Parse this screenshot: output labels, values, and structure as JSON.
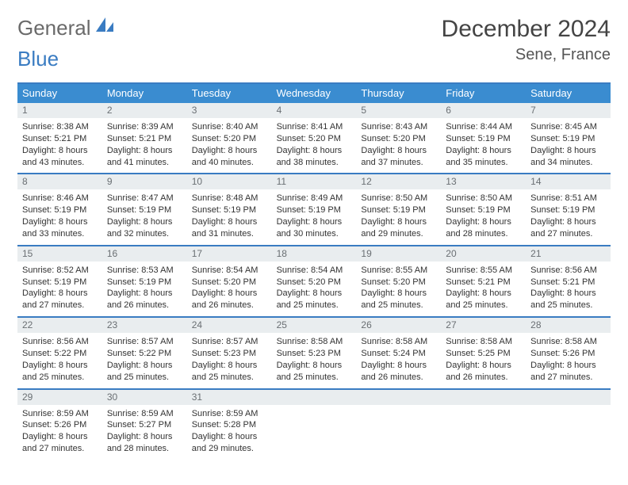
{
  "brand": {
    "text_gray": "General",
    "text_blue": "Blue"
  },
  "title": {
    "month": "December 2024",
    "location": "Sene, France"
  },
  "weekdays": [
    "Sunday",
    "Monday",
    "Tuesday",
    "Wednesday",
    "Thursday",
    "Friday",
    "Saturday"
  ],
  "styles": {
    "header_bg": "#3a8cd0",
    "border_color": "#3a7cc2",
    "daynum_bg": "#e9edef",
    "body_bg": "#ffffff",
    "header_text": "#ffffff",
    "body_text": "#333333",
    "title_text": "#444444",
    "logo_gray": "#6a6a6a",
    "logo_blue": "#3a7cc2",
    "title_fontsize_pt": 22,
    "location_fontsize_pt": 15,
    "weekday_fontsize_pt": 10,
    "cell_fontsize_pt": 8
  },
  "weeks": [
    [
      {
        "n": "1",
        "sunrise": "Sunrise: 8:38 AM",
        "sunset": "Sunset: 5:21 PM",
        "day1": "Daylight: 8 hours",
        "day2": "and 43 minutes."
      },
      {
        "n": "2",
        "sunrise": "Sunrise: 8:39 AM",
        "sunset": "Sunset: 5:21 PM",
        "day1": "Daylight: 8 hours",
        "day2": "and 41 minutes."
      },
      {
        "n": "3",
        "sunrise": "Sunrise: 8:40 AM",
        "sunset": "Sunset: 5:20 PM",
        "day1": "Daylight: 8 hours",
        "day2": "and 40 minutes."
      },
      {
        "n": "4",
        "sunrise": "Sunrise: 8:41 AM",
        "sunset": "Sunset: 5:20 PM",
        "day1": "Daylight: 8 hours",
        "day2": "and 38 minutes."
      },
      {
        "n": "5",
        "sunrise": "Sunrise: 8:43 AM",
        "sunset": "Sunset: 5:20 PM",
        "day1": "Daylight: 8 hours",
        "day2": "and 37 minutes."
      },
      {
        "n": "6",
        "sunrise": "Sunrise: 8:44 AM",
        "sunset": "Sunset: 5:19 PM",
        "day1": "Daylight: 8 hours",
        "day2": "and 35 minutes."
      },
      {
        "n": "7",
        "sunrise": "Sunrise: 8:45 AM",
        "sunset": "Sunset: 5:19 PM",
        "day1": "Daylight: 8 hours",
        "day2": "and 34 minutes."
      }
    ],
    [
      {
        "n": "8",
        "sunrise": "Sunrise: 8:46 AM",
        "sunset": "Sunset: 5:19 PM",
        "day1": "Daylight: 8 hours",
        "day2": "and 33 minutes."
      },
      {
        "n": "9",
        "sunrise": "Sunrise: 8:47 AM",
        "sunset": "Sunset: 5:19 PM",
        "day1": "Daylight: 8 hours",
        "day2": "and 32 minutes."
      },
      {
        "n": "10",
        "sunrise": "Sunrise: 8:48 AM",
        "sunset": "Sunset: 5:19 PM",
        "day1": "Daylight: 8 hours",
        "day2": "and 31 minutes."
      },
      {
        "n": "11",
        "sunrise": "Sunrise: 8:49 AM",
        "sunset": "Sunset: 5:19 PM",
        "day1": "Daylight: 8 hours",
        "day2": "and 30 minutes."
      },
      {
        "n": "12",
        "sunrise": "Sunrise: 8:50 AM",
        "sunset": "Sunset: 5:19 PM",
        "day1": "Daylight: 8 hours",
        "day2": "and 29 minutes."
      },
      {
        "n": "13",
        "sunrise": "Sunrise: 8:50 AM",
        "sunset": "Sunset: 5:19 PM",
        "day1": "Daylight: 8 hours",
        "day2": "and 28 minutes."
      },
      {
        "n": "14",
        "sunrise": "Sunrise: 8:51 AM",
        "sunset": "Sunset: 5:19 PM",
        "day1": "Daylight: 8 hours",
        "day2": "and 27 minutes."
      }
    ],
    [
      {
        "n": "15",
        "sunrise": "Sunrise: 8:52 AM",
        "sunset": "Sunset: 5:19 PM",
        "day1": "Daylight: 8 hours",
        "day2": "and 27 minutes."
      },
      {
        "n": "16",
        "sunrise": "Sunrise: 8:53 AM",
        "sunset": "Sunset: 5:19 PM",
        "day1": "Daylight: 8 hours",
        "day2": "and 26 minutes."
      },
      {
        "n": "17",
        "sunrise": "Sunrise: 8:54 AM",
        "sunset": "Sunset: 5:20 PM",
        "day1": "Daylight: 8 hours",
        "day2": "and 26 minutes."
      },
      {
        "n": "18",
        "sunrise": "Sunrise: 8:54 AM",
        "sunset": "Sunset: 5:20 PM",
        "day1": "Daylight: 8 hours",
        "day2": "and 25 minutes."
      },
      {
        "n": "19",
        "sunrise": "Sunrise: 8:55 AM",
        "sunset": "Sunset: 5:20 PM",
        "day1": "Daylight: 8 hours",
        "day2": "and 25 minutes."
      },
      {
        "n": "20",
        "sunrise": "Sunrise: 8:55 AM",
        "sunset": "Sunset: 5:21 PM",
        "day1": "Daylight: 8 hours",
        "day2": "and 25 minutes."
      },
      {
        "n": "21",
        "sunrise": "Sunrise: 8:56 AM",
        "sunset": "Sunset: 5:21 PM",
        "day1": "Daylight: 8 hours",
        "day2": "and 25 minutes."
      }
    ],
    [
      {
        "n": "22",
        "sunrise": "Sunrise: 8:56 AM",
        "sunset": "Sunset: 5:22 PM",
        "day1": "Daylight: 8 hours",
        "day2": "and 25 minutes."
      },
      {
        "n": "23",
        "sunrise": "Sunrise: 8:57 AM",
        "sunset": "Sunset: 5:22 PM",
        "day1": "Daylight: 8 hours",
        "day2": "and 25 minutes."
      },
      {
        "n": "24",
        "sunrise": "Sunrise: 8:57 AM",
        "sunset": "Sunset: 5:23 PM",
        "day1": "Daylight: 8 hours",
        "day2": "and 25 minutes."
      },
      {
        "n": "25",
        "sunrise": "Sunrise: 8:58 AM",
        "sunset": "Sunset: 5:23 PM",
        "day1": "Daylight: 8 hours",
        "day2": "and 25 minutes."
      },
      {
        "n": "26",
        "sunrise": "Sunrise: 8:58 AM",
        "sunset": "Sunset: 5:24 PM",
        "day1": "Daylight: 8 hours",
        "day2": "and 26 minutes."
      },
      {
        "n": "27",
        "sunrise": "Sunrise: 8:58 AM",
        "sunset": "Sunset: 5:25 PM",
        "day1": "Daylight: 8 hours",
        "day2": "and 26 minutes."
      },
      {
        "n": "28",
        "sunrise": "Sunrise: 8:58 AM",
        "sunset": "Sunset: 5:26 PM",
        "day1": "Daylight: 8 hours",
        "day2": "and 27 minutes."
      }
    ],
    [
      {
        "n": "29",
        "sunrise": "Sunrise: 8:59 AM",
        "sunset": "Sunset: 5:26 PM",
        "day1": "Daylight: 8 hours",
        "day2": "and 27 minutes."
      },
      {
        "n": "30",
        "sunrise": "Sunrise: 8:59 AM",
        "sunset": "Sunset: 5:27 PM",
        "day1": "Daylight: 8 hours",
        "day2": "and 28 minutes."
      },
      {
        "n": "31",
        "sunrise": "Sunrise: 8:59 AM",
        "sunset": "Sunset: 5:28 PM",
        "day1": "Daylight: 8 hours",
        "day2": "and 29 minutes."
      },
      null,
      null,
      null,
      null
    ]
  ]
}
